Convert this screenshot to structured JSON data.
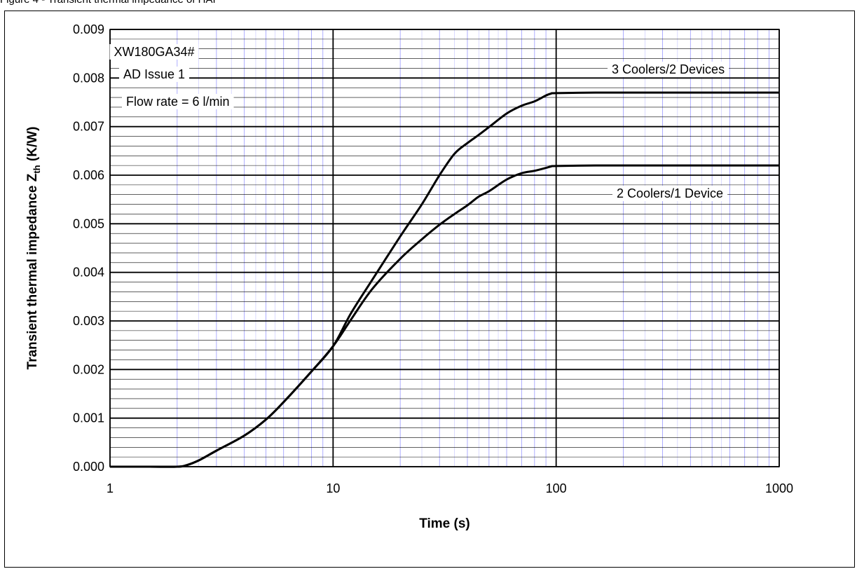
{
  "figure": {
    "caption": "Figure 4 - Transient thermal impedance of HAI"
  },
  "colors": {
    "major_grid": "#000000",
    "minor_grid_y": "#000000",
    "minor_grid_x": "#9999ff",
    "curve": "#000000"
  },
  "chart_data": {
    "type": "line",
    "title": "",
    "xlabel": "Time (s)",
    "ylabel_main": "Transient thermal impedance Z",
    "ylabel_sub": "th",
    "ylabel_unit": "(K/W)",
    "x_scale": "log",
    "xlim": [
      1,
      1000
    ],
    "ylim": [
      0,
      0.009
    ],
    "x_ticks": [
      "1",
      "10",
      "100",
      "1000"
    ],
    "y_ticks": [
      "0.000",
      "0.001",
      "0.002",
      "0.003",
      "0.004",
      "0.005",
      "0.006",
      "0.007",
      "0.008",
      "0.009"
    ],
    "grid": true,
    "annotations": {
      "part": "XW180GA34#",
      "issue": "AD Issue 1",
      "flow": "Flow rate = 6 l/min"
    },
    "series": [
      {
        "name": "3 Coolers/2 Devices",
        "x": [
          1,
          1.5,
          2,
          2.2,
          2.5,
          3,
          4,
          5,
          6,
          8,
          10,
          12,
          15,
          20,
          25,
          30,
          35,
          40,
          45,
          50,
          60,
          70,
          80,
          90,
          95,
          100,
          150,
          200,
          500,
          1000
        ],
        "y": [
          0.0,
          0.0,
          0.0,
          3e-05,
          0.00013,
          0.00033,
          0.00064,
          0.00097,
          0.00133,
          0.00196,
          0.00248,
          0.00315,
          0.00385,
          0.00474,
          0.0054,
          0.006,
          0.00644,
          0.00666,
          0.00683,
          0.00699,
          0.00727,
          0.00743,
          0.00752,
          0.00764,
          0.00768,
          0.00769,
          0.0077,
          0.0077,
          0.0077,
          0.0077
        ]
      },
      {
        "name": "2 Coolers/1 Device",
        "x": [
          1,
          1.5,
          2,
          2.2,
          2.5,
          3,
          4,
          5,
          6,
          8,
          10,
          12,
          15,
          20,
          25,
          30,
          35,
          40,
          45,
          50,
          60,
          70,
          80,
          90,
          95,
          100,
          150,
          200,
          500,
          1000
        ],
        "y": [
          0.0,
          0.0,
          0.0,
          3e-05,
          0.00013,
          0.00033,
          0.00064,
          0.00097,
          0.00133,
          0.00196,
          0.00248,
          0.00302,
          0.00366,
          0.00428,
          0.00468,
          0.00498,
          0.0052,
          0.00538,
          0.00556,
          0.00567,
          0.00591,
          0.00604,
          0.00609,
          0.00615,
          0.00618,
          0.00619,
          0.0062,
          0.0062,
          0.0062,
          0.0062
        ]
      }
    ]
  }
}
